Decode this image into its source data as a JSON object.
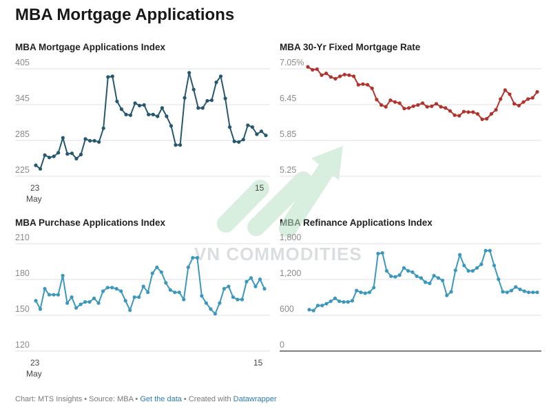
{
  "page_title": "MBA Mortgage Applications",
  "footer": {
    "prefix": "Chart: MTS Insights • Source: MBA • ",
    "link1": "Get the data",
    "middle": " • Created with ",
    "link2": "Datawrapper"
  },
  "watermark": "VN COMMODITIES",
  "colors": {
    "dark_teal": "#25576f",
    "red": "#b1332c",
    "light_teal": "#3b97bd",
    "grid": "#e0e0e0",
    "baseline": "#333333",
    "watermark_green": "#a9d9b8"
  },
  "chart_data": [
    {
      "type": "line",
      "title": "MBA Mortgage Applications Index",
      "y_ticks": [
        405,
        345,
        285,
        225
      ],
      "y_tick_labels": [
        "405",
        "345",
        "285",
        "225"
      ],
      "ylim": [
        225,
        405
      ],
      "x_labels": [
        "23",
        "May",
        "15"
      ],
      "color": "#25576f",
      "values": [
        233,
        227,
        250,
        246,
        248,
        254,
        279,
        252,
        253,
        244,
        251,
        277,
        274,
        274,
        272,
        295,
        381,
        382,
        340,
        327,
        318,
        317,
        337,
        333,
        334,
        318,
        318,
        315,
        329,
        315,
        299,
        267,
        267,
        346,
        388,
        360,
        329,
        329,
        341,
        342,
        372,
        382,
        345,
        297,
        273,
        272,
        276,
        300,
        297,
        285,
        290,
        283
      ]
    },
    {
      "type": "line",
      "title": "MBA 30-Yr Fixed Mortgage Rate",
      "y_ticks": [
        7.05,
        6.45,
        5.85,
        5.25
      ],
      "y_tick_labels": [
        "7.05%",
        "6.45",
        "5.85",
        "5.25"
      ],
      "ylim": [
        5.25,
        7.05
      ],
      "color": "#b1332c",
      "values": [
        6.98,
        6.93,
        6.94,
        6.84,
        6.87,
        6.81,
        6.78,
        6.82,
        6.85,
        6.84,
        6.82,
        6.68,
        6.69,
        6.68,
        6.62,
        6.43,
        6.34,
        6.31,
        6.42,
        6.39,
        6.37,
        6.28,
        6.29,
        6.32,
        6.34,
        6.37,
        6.31,
        6.32,
        6.36,
        6.31,
        6.29,
        6.24,
        6.17,
        6.16,
        6.23,
        6.22,
        6.22,
        6.19,
        6.1,
        6.11,
        6.19,
        6.26,
        6.44,
        6.59,
        6.52,
        6.36,
        6.33,
        6.39,
        6.44,
        6.46,
        6.56
      ]
    },
    {
      "type": "line",
      "title": "MBA Purchase Applications Index",
      "y_ticks": [
        210,
        180,
        150,
        120
      ],
      "y_tick_labels": [
        "210",
        "180",
        "150",
        "120"
      ],
      "ylim": [
        120,
        210
      ],
      "x_labels": [
        "23",
        "May",
        "15"
      ],
      "color": "#3b97bd",
      "values": [
        157,
        150,
        167,
        162,
        162,
        162,
        178,
        155,
        160,
        151,
        154,
        156,
        156,
        159,
        155,
        165,
        168,
        168,
        167,
        165,
        157,
        149,
        160,
        160,
        169,
        164,
        180,
        185,
        181,
        172,
        166,
        164,
        164,
        158,
        185,
        193,
        193,
        161,
        155,
        150,
        146,
        155,
        167,
        169,
        160,
        158,
        158,
        173,
        176,
        169,
        175,
        167
      ]
    },
    {
      "type": "line",
      "title": "MBA Refinance Applications Index",
      "y_ticks": [
        1800,
        1200,
        600,
        0
      ],
      "y_tick_labels": [
        "1,800",
        "1,200",
        "600",
        "0"
      ],
      "ylim": [
        0,
        1800
      ],
      "color": "#3b97bd",
      "values": [
        590,
        575,
        660,
        660,
        690,
        730,
        780,
        730,
        720,
        720,
        740,
        910,
        880,
        865,
        880,
        960,
        1530,
        1540,
        1240,
        1150,
        1140,
        1170,
        1290,
        1240,
        1220,
        1150,
        1120,
        1050,
        1030,
        1160,
        1120,
        1080,
        830,
        890,
        1250,
        1510,
        1330,
        1240,
        1240,
        1290,
        1350,
        1580,
        1580,
        1330,
        1100,
        890,
        880,
        910,
        970,
        930,
        900,
        880,
        880,
        880
      ]
    }
  ]
}
